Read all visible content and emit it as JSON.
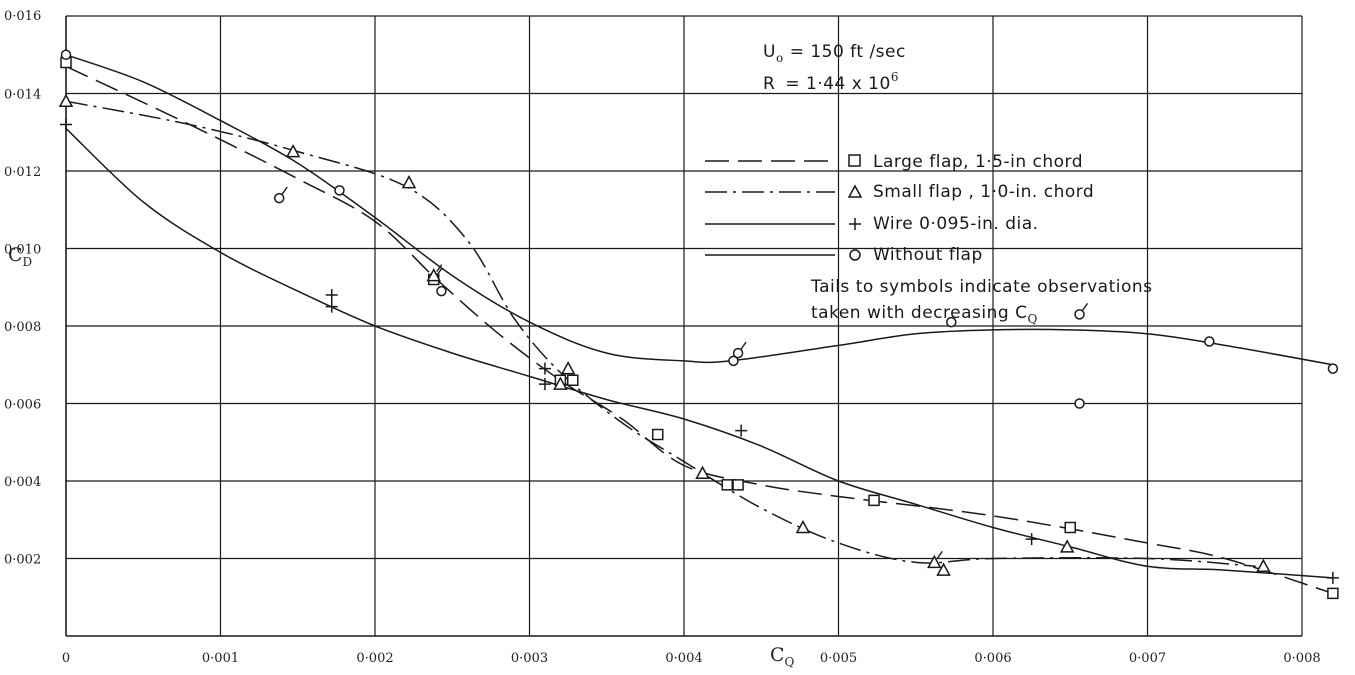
{
  "chart_data": {
    "type": "line",
    "xlabel": "C",
    "xlabel_sub": "Q",
    "ylabel": "C",
    "ylabel_sub": "D",
    "xlim": [
      0,
      0.008
    ],
    "ylim": [
      0,
      0.016
    ],
    "x_ticks": [
      {
        "value": 0,
        "label": "0"
      },
      {
        "value": 0.001,
        "label": "0·001"
      },
      {
        "value": 0.002,
        "label": "0·002"
      },
      {
        "value": 0.003,
        "label": "0·003"
      },
      {
        "value": 0.004,
        "label": "0·004"
      },
      {
        "value": 0.005,
        "label": "0·005"
      },
      {
        "value": 0.006,
        "label": "0·006"
      },
      {
        "value": 0.007,
        "label": "0·007"
      },
      {
        "value": 0.008,
        "label": "0·008"
      }
    ],
    "y_ticks": [
      {
        "value": 0.002,
        "label": "0·002"
      },
      {
        "value": 0.004,
        "label": "0·004"
      },
      {
        "value": 0.006,
        "label": "0·006"
      },
      {
        "value": 0.008,
        "label": "0·008"
      },
      {
        "value": 0.01,
        "label": "0·010"
      },
      {
        "value": 0.012,
        "label": "0·012"
      },
      {
        "value": 0.014,
        "label": "0·014"
      },
      {
        "value": 0.016,
        "label": "0·016"
      }
    ],
    "grid": true,
    "conditions": {
      "u_label": "U",
      "u_sub": "o",
      "u_value": "= 150 ft /sec",
      "r_label": "R",
      "r_value": "= 1·44 x 10",
      "r_exp": "6"
    },
    "legend_position": "top-right",
    "note_line1": "Tails to symbols indicate observations",
    "note_line2": "taken with decreasing C",
    "note_sub": "Q",
    "series": [
      {
        "name": "Large flap,  1·5-in chord",
        "marker": "square",
        "line_style": "long-dash",
        "curve": [
          [
            0,
            0.0147
          ],
          [
            0.0008,
            0.0132
          ],
          [
            0.0015,
            0.0118
          ],
          [
            0.002,
            0.0107
          ],
          [
            0.0024,
            0.0092
          ],
          [
            0.0028,
            0.0078
          ],
          [
            0.0032,
            0.0066
          ],
          [
            0.0036,
            0.0056
          ],
          [
            0.004,
            0.0044
          ],
          [
            0.0045,
            0.0039
          ],
          [
            0.005,
            0.0036
          ],
          [
            0.006,
            0.0031
          ],
          [
            0.007,
            0.0024
          ],
          [
            0.0075,
            0.002
          ],
          [
            0.0082,
            0.0011
          ]
        ],
        "points": [
          {
            "x": 0,
            "y": 0.0148,
            "tail": false
          },
          {
            "x": 0.00238,
            "y": 0.0092,
            "tail": true
          },
          {
            "x": 0.0032,
            "y": 0.0066,
            "tail": false
          },
          {
            "x": 0.00328,
            "y": 0.0066,
            "tail": false
          },
          {
            "x": 0.00383,
            "y": 0.0052,
            "tail": false
          },
          {
            "x": 0.00428,
            "y": 0.0039,
            "tail": false
          },
          {
            "x": 0.00435,
            "y": 0.0039,
            "tail": false
          },
          {
            "x": 0.00523,
            "y": 0.0035,
            "tail": false
          },
          {
            "x": 0.0065,
            "y": 0.0028,
            "tail": false
          },
          {
            "x": 0.0082,
            "y": 0.0011,
            "tail": false
          }
        ]
      },
      {
        "name": "Small flap ,  1·0-in. chord",
        "marker": "triangle",
        "line_style": "dash-dot",
        "curve": [
          [
            0,
            0.0138
          ],
          [
            0.0008,
            0.0132
          ],
          [
            0.0015,
            0.0125
          ],
          [
            0.0022,
            0.0116
          ],
          [
            0.0026,
            0.0102
          ],
          [
            0.0029,
            0.0082
          ],
          [
            0.0032,
            0.0068
          ],
          [
            0.0036,
            0.0055
          ],
          [
            0.004,
            0.0045
          ],
          [
            0.0045,
            0.0033
          ],
          [
            0.005,
            0.0024
          ],
          [
            0.0055,
            0.0019
          ],
          [
            0.006,
            0.002
          ],
          [
            0.007,
            0.002
          ],
          [
            0.0077,
            0.0018
          ]
        ],
        "points": [
          {
            "x": 0,
            "y": 0.0138,
            "tail": false
          },
          {
            "x": 0.00147,
            "y": 0.0125,
            "tail": false
          },
          {
            "x": 0.00222,
            "y": 0.0117,
            "tail": false
          },
          {
            "x": 0.00238,
            "y": 0.0093,
            "tail": true
          },
          {
            "x": 0.0032,
            "y": 0.0065,
            "tail": false
          },
          {
            "x": 0.00325,
            "y": 0.0069,
            "tail": false
          },
          {
            "x": 0.00412,
            "y": 0.0042,
            "tail": false
          },
          {
            "x": 0.00477,
            "y": 0.0028,
            "tail": false
          },
          {
            "x": 0.00562,
            "y": 0.0019,
            "tail": true
          },
          {
            "x": 0.00568,
            "y": 0.0017,
            "tail": false
          },
          {
            "x": 0.00648,
            "y": 0.0023,
            "tail": false
          },
          {
            "x": 0.00775,
            "y": 0.0018,
            "tail": false
          }
        ]
      },
      {
        "name": "Wire  0·095-in. dia.",
        "marker": "plus",
        "line_style": "solid",
        "curve": [
          [
            0,
            0.0131
          ],
          [
            0.0005,
            0.0112
          ],
          [
            0.001,
            0.0099
          ],
          [
            0.0015,
            0.0089
          ],
          [
            0.002,
            0.008
          ],
          [
            0.0025,
            0.0073
          ],
          [
            0.003,
            0.0067
          ],
          [
            0.0035,
            0.0061
          ],
          [
            0.004,
            0.0056
          ],
          [
            0.0045,
            0.0049
          ],
          [
            0.005,
            0.004
          ],
          [
            0.0055,
            0.0034
          ],
          [
            0.006,
            0.0028
          ],
          [
            0.0065,
            0.0023
          ],
          [
            0.007,
            0.0018
          ],
          [
            0.0075,
            0.0017
          ],
          [
            0.0082,
            0.0015
          ]
        ],
        "points": [
          {
            "x": 0,
            "y": 0.0132,
            "tail": false
          },
          {
            "x": 0.00172,
            "y": 0.0088,
            "tail": false
          },
          {
            "x": 0.00172,
            "y": 0.0085,
            "tail": false
          },
          {
            "x": 0.0031,
            "y": 0.0069,
            "tail": false
          },
          {
            "x": 0.0031,
            "y": 0.0065,
            "tail": false
          },
          {
            "x": 0.00437,
            "y": 0.0053,
            "tail": false
          },
          {
            "x": 0.00625,
            "y": 0.0025,
            "tail": false
          },
          {
            "x": 0.0082,
            "y": 0.0015,
            "tail": false
          }
        ]
      },
      {
        "name": "Without flap",
        "marker": "circle",
        "line_style": "solid",
        "curve": [
          [
            0,
            0.015
          ],
          [
            0.0005,
            0.0143
          ],
          [
            0.001,
            0.0133
          ],
          [
            0.0015,
            0.0122
          ],
          [
            0.002,
            0.0108
          ],
          [
            0.0025,
            0.0093
          ],
          [
            0.003,
            0.0081
          ],
          [
            0.0035,
            0.0073
          ],
          [
            0.004,
            0.0071
          ],
          [
            0.0043,
            0.0071
          ],
          [
            0.005,
            0.0075
          ],
          [
            0.0055,
            0.0078
          ],
          [
            0.006,
            0.0079
          ],
          [
            0.0065,
            0.0079
          ],
          [
            0.007,
            0.0078
          ],
          [
            0.0075,
            0.0075
          ],
          [
            0.0082,
            0.007
          ]
        ],
        "points": [
          {
            "x": 0,
            "y": 0.015,
            "tail": false
          },
          {
            "x": 0.00138,
            "y": 0.0113,
            "tail": true
          },
          {
            "x": 0.00177,
            "y": 0.0115,
            "tail": false
          },
          {
            "x": 0.00243,
            "y": 0.0089,
            "tail": false
          },
          {
            "x": 0.00432,
            "y": 0.0071,
            "tail": false
          },
          {
            "x": 0.00435,
            "y": 0.0073,
            "tail": true
          },
          {
            "x": 0.00573,
            "y": 0.0081,
            "tail": false
          },
          {
            "x": 0.00656,
            "y": 0.0083,
            "tail": true
          },
          {
            "x": 0.00656,
            "y": 0.006,
            "tail": false
          },
          {
            "x": 0.0074,
            "y": 0.0076,
            "tail": false
          },
          {
            "x": 0.0082,
            "y": 0.0069,
            "tail": false
          }
        ]
      }
    ]
  }
}
